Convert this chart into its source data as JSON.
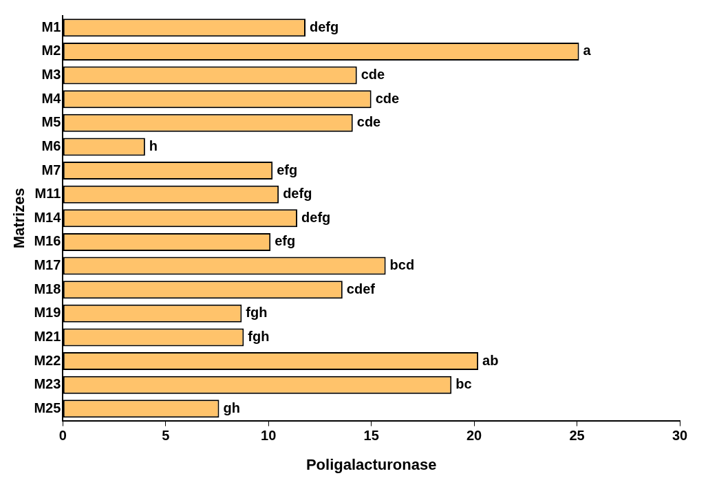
{
  "chart_data": {
    "type": "bar",
    "orientation": "horizontal",
    "xlabel": "Poligalacturonase",
    "ylabel": "Matrizes",
    "categories": [
      "M1",
      "M2",
      "M3",
      "M4",
      "M5",
      "M6",
      "M7",
      "M11",
      "M14",
      "M16",
      "M17",
      "M18",
      "M19",
      "M21",
      "M22",
      "M23",
      "M25"
    ],
    "values": [
      11.8,
      25.1,
      14.3,
      15.0,
      14.1,
      4.0,
      10.2,
      10.5,
      11.4,
      10.1,
      15.7,
      13.6,
      8.7,
      8.8,
      20.2,
      18.9,
      7.6
    ],
    "value_labels": [
      "defg",
      "a",
      "cde",
      "cde",
      "cde",
      "h",
      "efg",
      "defg",
      "defg",
      "efg",
      "bcd",
      "cdef",
      "fgh",
      "fgh",
      "ab",
      "bc",
      "gh"
    ],
    "color": "#ffc36b",
    "xlim": [
      0,
      30
    ],
    "xticks": [
      0,
      5,
      10,
      15,
      20,
      25,
      30
    ],
    "grid": false,
    "legend": false
  }
}
